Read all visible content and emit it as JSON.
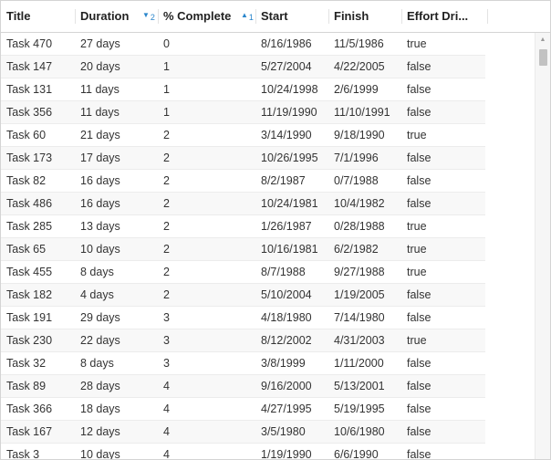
{
  "columns": {
    "title": "Title",
    "duration": "Duration",
    "percent_complete": "% Complete",
    "start": "Start",
    "finish": "Finish",
    "effort_driven": "Effort Dri..."
  },
  "sort": {
    "duration": {
      "direction": "descending",
      "icon": "sort-descending-icon",
      "order": "2"
    },
    "percent_complete": {
      "direction": "ascending",
      "icon": "sort-ascending-icon",
      "order": "1"
    }
  },
  "accent_color": "#2a86cc",
  "rows": [
    {
      "title": "Task 470",
      "duration": "27 days",
      "percent": "0",
      "start": "8/16/1986",
      "finish": "11/5/1986",
      "effort": "true"
    },
    {
      "title": "Task 147",
      "duration": "20 days",
      "percent": "1",
      "start": "5/27/2004",
      "finish": "4/22/2005",
      "effort": "false"
    },
    {
      "title": "Task 131",
      "duration": "11 days",
      "percent": "1",
      "start": "10/24/1998",
      "finish": "2/6/1999",
      "effort": "false"
    },
    {
      "title": "Task 356",
      "duration": "11 days",
      "percent": "1",
      "start": "11/19/1990",
      "finish": "11/10/1991",
      "effort": "false"
    },
    {
      "title": "Task 60",
      "duration": "21 days",
      "percent": "2",
      "start": "3/14/1990",
      "finish": "9/18/1990",
      "effort": "true"
    },
    {
      "title": "Task 173",
      "duration": "17 days",
      "percent": "2",
      "start": "10/26/1995",
      "finish": "7/1/1996",
      "effort": "false"
    },
    {
      "title": "Task 82",
      "duration": "16 days",
      "percent": "2",
      "start": "8/2/1987",
      "finish": "0/7/1988",
      "effort": "false"
    },
    {
      "title": "Task 486",
      "duration": "16 days",
      "percent": "2",
      "start": "10/24/1981",
      "finish": "10/4/1982",
      "effort": "false"
    },
    {
      "title": "Task 285",
      "duration": "13 days",
      "percent": "2",
      "start": "1/26/1987",
      "finish": "0/28/1988",
      "effort": "true"
    },
    {
      "title": "Task 65",
      "duration": "10 days",
      "percent": "2",
      "start": "10/16/1981",
      "finish": "6/2/1982",
      "effort": "true"
    },
    {
      "title": "Task 455",
      "duration": "8 days",
      "percent": "2",
      "start": "8/7/1988",
      "finish": "9/27/1988",
      "effort": "true"
    },
    {
      "title": "Task 182",
      "duration": "4 days",
      "percent": "2",
      "start": "5/10/2004",
      "finish": "1/19/2005",
      "effort": "false"
    },
    {
      "title": "Task 191",
      "duration": "29 days",
      "percent": "3",
      "start": "4/18/1980",
      "finish": "7/14/1980",
      "effort": "false"
    },
    {
      "title": "Task 230",
      "duration": "22 days",
      "percent": "3",
      "start": "8/12/2002",
      "finish": "4/31/2003",
      "effort": "true"
    },
    {
      "title": "Task 32",
      "duration": "8 days",
      "percent": "3",
      "start": "3/8/1999",
      "finish": "1/11/2000",
      "effort": "false"
    },
    {
      "title": "Task 89",
      "duration": "28 days",
      "percent": "4",
      "start": "9/16/2000",
      "finish": "5/13/2001",
      "effort": "false"
    },
    {
      "title": "Task 366",
      "duration": "18 days",
      "percent": "4",
      "start": "4/27/1995",
      "finish": "5/19/1995",
      "effort": "false"
    },
    {
      "title": "Task 167",
      "duration": "12 days",
      "percent": "4",
      "start": "3/5/1980",
      "finish": "10/6/1980",
      "effort": "false"
    },
    {
      "title": "Task 3",
      "duration": "10 days",
      "percent": "4",
      "start": "1/19/1990",
      "finish": "6/6/1990",
      "effort": "false"
    }
  ]
}
